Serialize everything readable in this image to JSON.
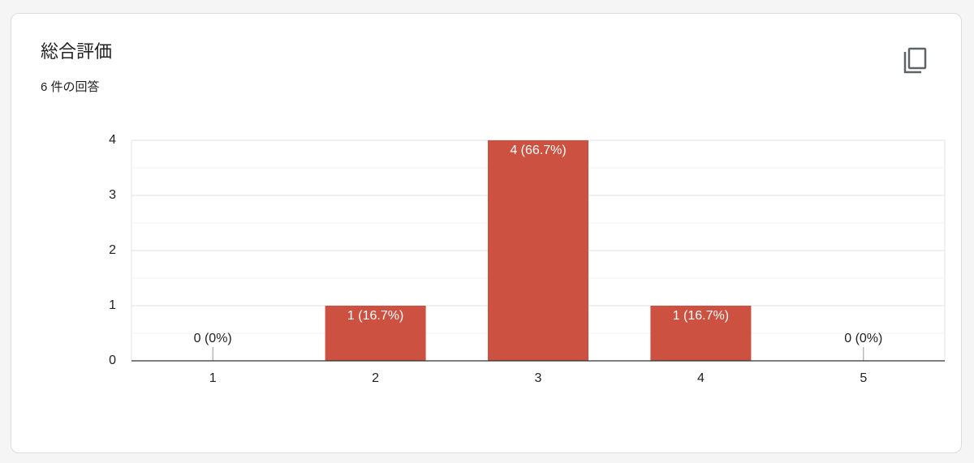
{
  "chart_data": {
    "type": "bar",
    "title": "総合評価",
    "subtitle": "6 件の回答",
    "categories": [
      "1",
      "2",
      "3",
      "4",
      "5"
    ],
    "values": [
      0,
      1,
      4,
      1,
      0
    ],
    "value_labels": [
      "0 (0%)",
      "1 (16.7%)",
      "4 (66.7%)",
      "1 (16.7%)",
      "0 (0%)"
    ],
    "color": "#cc5140",
    "ylim": [
      0,
      4
    ],
    "yticks": [
      0,
      1,
      2,
      3,
      4
    ],
    "minor_yticks": [
      0.5,
      1.5,
      2.5,
      3.5
    ],
    "grid": true
  }
}
